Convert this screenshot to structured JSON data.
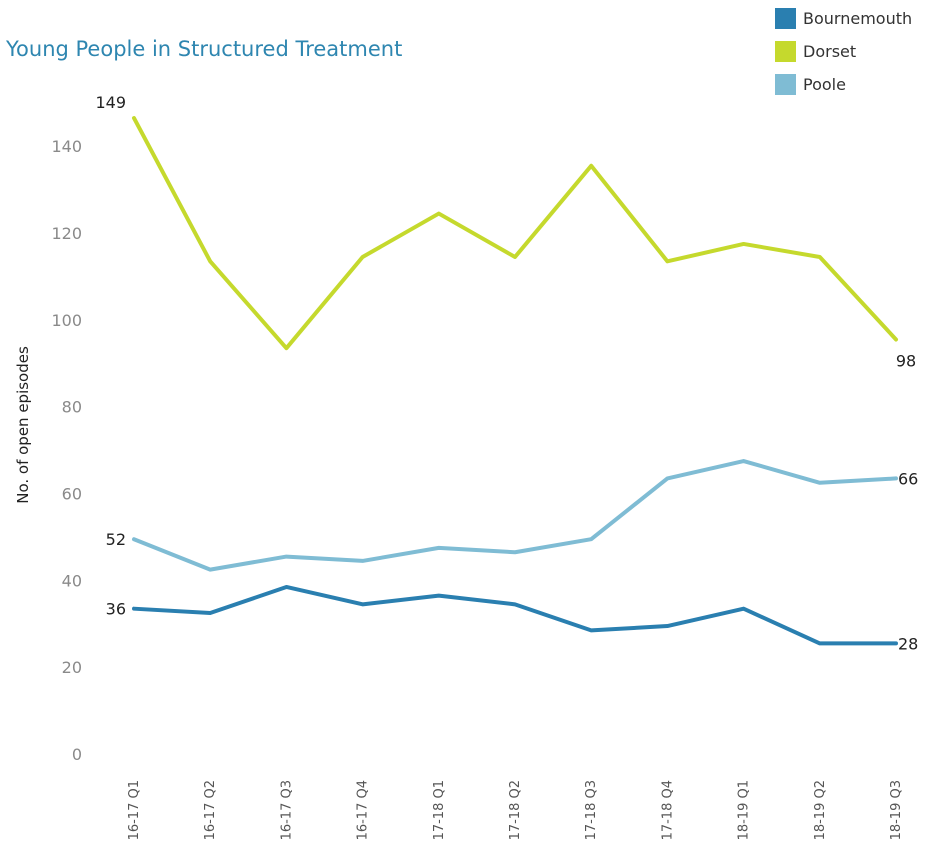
{
  "chart_data": {
    "type": "line",
    "title": "Young People in Structured Treatment",
    "ylabel": "No. of open episodes",
    "xlabel": "",
    "ylim": [
      0,
      155
    ],
    "yticks": [
      0,
      20,
      40,
      60,
      80,
      100,
      120,
      140
    ],
    "categories": [
      "16-17 Q1",
      "16-17 Q2",
      "16-17 Q3",
      "16-17 Q4",
      "17-18 Q1",
      "17-18 Q2",
      "17-18 Q3",
      "17-18 Q4",
      "18-19 Q1",
      "18-19 Q2",
      "18-19 Q3"
    ],
    "legend_position": "top-right",
    "grid": false,
    "series": [
      {
        "name": "Bournemouth",
        "color": "#2a7fb0",
        "values": [
          36,
          35,
          41,
          37,
          39,
          37,
          31,
          32,
          36,
          28,
          28
        ],
        "labels": [
          {
            "index": 0,
            "text": "36"
          },
          {
            "index": 10,
            "text": "28"
          }
        ]
      },
      {
        "name": "Dorset",
        "color": "#c5d92d",
        "values": [
          149,
          116,
          96,
          117,
          127,
          117,
          138,
          116,
          120,
          117,
          98
        ],
        "labels": [
          {
            "index": 0,
            "text": "149"
          },
          {
            "index": 10,
            "text": "98"
          }
        ]
      },
      {
        "name": "Poole",
        "color": "#7fbcd4",
        "values": [
          52,
          45,
          48,
          47,
          50,
          49,
          52,
          66,
          70,
          65,
          66
        ],
        "labels": [
          {
            "index": 0,
            "text": "52"
          },
          {
            "index": 10,
            "text": "66"
          }
        ]
      }
    ]
  }
}
